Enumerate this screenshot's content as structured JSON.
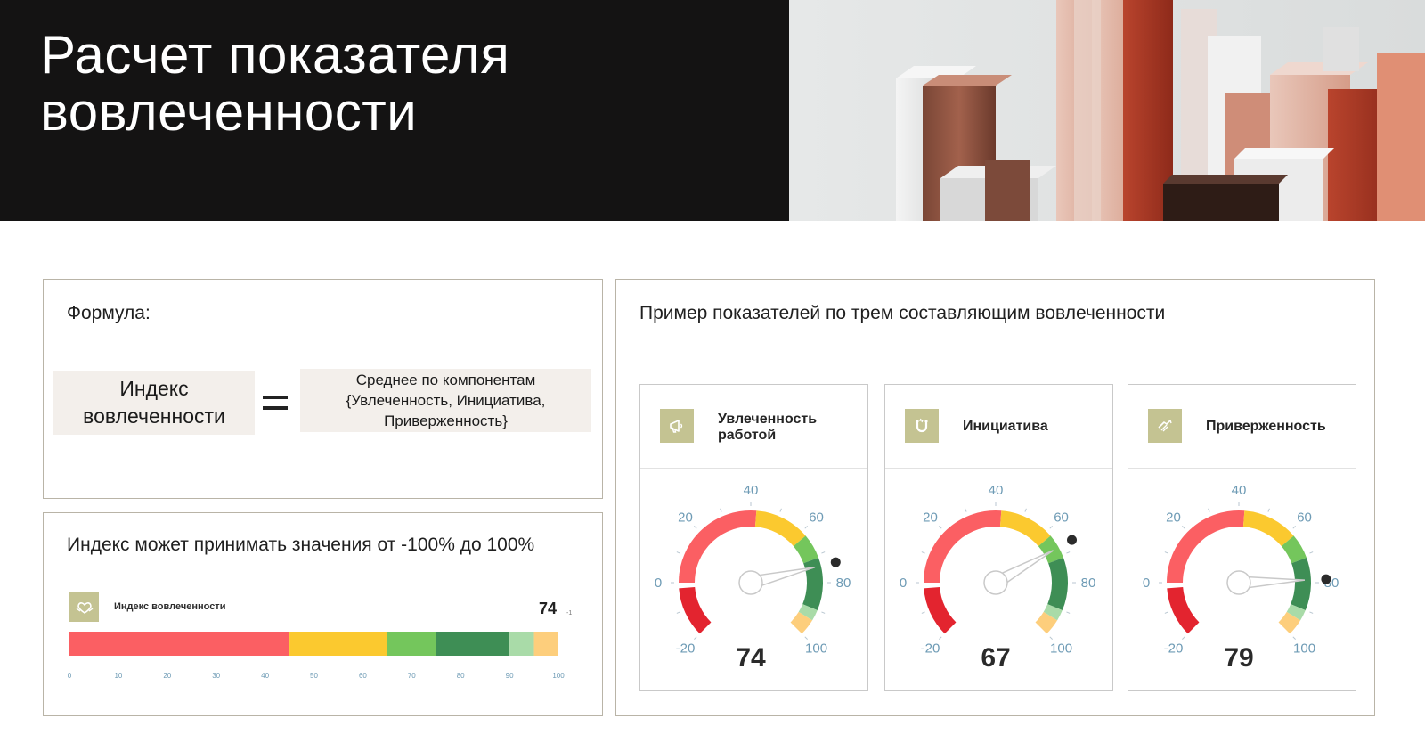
{
  "page_title": "Расчет показателя\nвовлеченности",
  "formula": {
    "title": "Формула:",
    "left": "Индекс\nвовлеченности",
    "right": "Среднее по компонентам\n{Увлеченность, Инициатива,\nПриверженность}"
  },
  "range": {
    "title": "Индекс может принимать значения от -100% до 100%",
    "label": "Индекс вовлеченности",
    "value": "74",
    "delta": "-1",
    "ticks": [
      "0",
      "10",
      "20",
      "30",
      "40",
      "50",
      "60",
      "70",
      "80",
      "90",
      "100"
    ],
    "segments": [
      {
        "from": 0,
        "to": 45,
        "color": "#fb5f63"
      },
      {
        "from": 45,
        "to": 65,
        "color": "#fbc92f"
      },
      {
        "from": 65,
        "to": 75,
        "color": "#74c65c"
      },
      {
        "from": 75,
        "to": 90,
        "color": "#3e8e55"
      },
      {
        "from": 90,
        "to": 95,
        "color": "#a9dba8"
      },
      {
        "from": 95,
        "to": 100,
        "color": "#fdce7c"
      }
    ]
  },
  "gauges_section": {
    "title": "Пример показателей по трем составляющим вовлеченности",
    "tick_labels": [
      "-20",
      "0",
      "20",
      "40",
      "60",
      "80",
      "100"
    ],
    "gauges": [
      {
        "label": "Увлеченность\nработой",
        "value": 74,
        "icon": "megaphone-icon"
      },
      {
        "label": "Инициатива",
        "value": 67,
        "icon": "magnet-icon"
      },
      {
        "label": "Приверженность",
        "value": 79,
        "icon": "handshake-icon"
      }
    ]
  },
  "colors": {
    "accent": "#c4c392",
    "red": "#fb5f63",
    "dark_red": "#e3242f",
    "yellow": "#fbc92f",
    "light_green": "#74c65c",
    "green": "#3e8e55",
    "pale_green": "#a9dba8",
    "orange": "#fdce7c",
    "tick_blue": "#6e9bb5"
  }
}
